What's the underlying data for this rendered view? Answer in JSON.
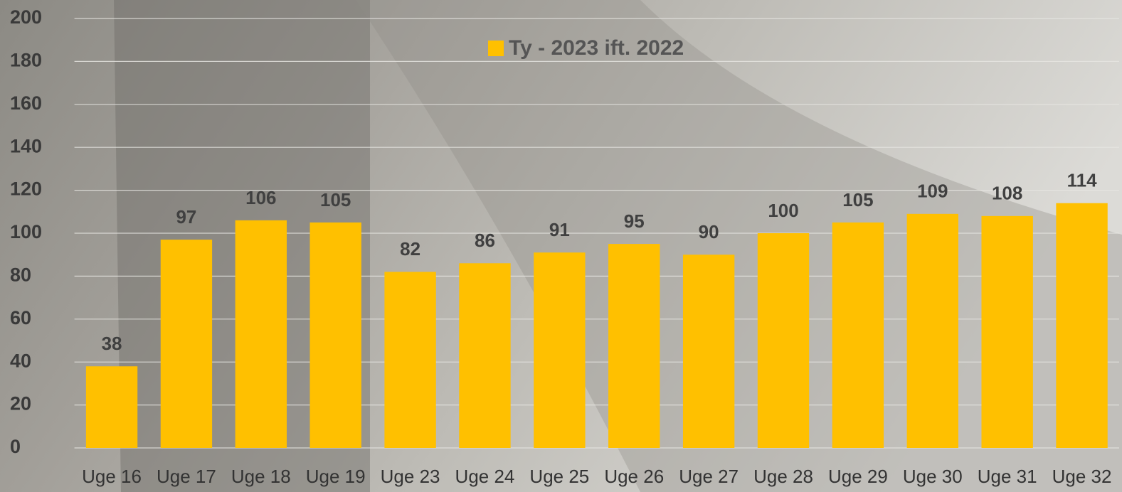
{
  "chart_data": {
    "type": "bar",
    "categories": [
      "Uge 16",
      "Uge 17",
      "Uge 18",
      "Uge 19",
      "Uge 23",
      "Uge 24",
      "Uge 25",
      "Uge 26",
      "Uge 27",
      "Uge 28",
      "Uge 29",
      "Uge 30",
      "Uge 31",
      "Uge 32"
    ],
    "series": [
      {
        "name": "Ty - 2023 ift. 2022",
        "color": "#ffc000",
        "values": [
          38,
          97,
          106,
          105,
          82,
          86,
          91,
          95,
          90,
          100,
          105,
          109,
          108,
          114
        ]
      }
    ],
    "ylim": [
      0,
      200
    ],
    "yticks": [
      0,
      20,
      40,
      60,
      80,
      100,
      120,
      140,
      160,
      180,
      200
    ],
    "grid": true,
    "legend": "top"
  }
}
